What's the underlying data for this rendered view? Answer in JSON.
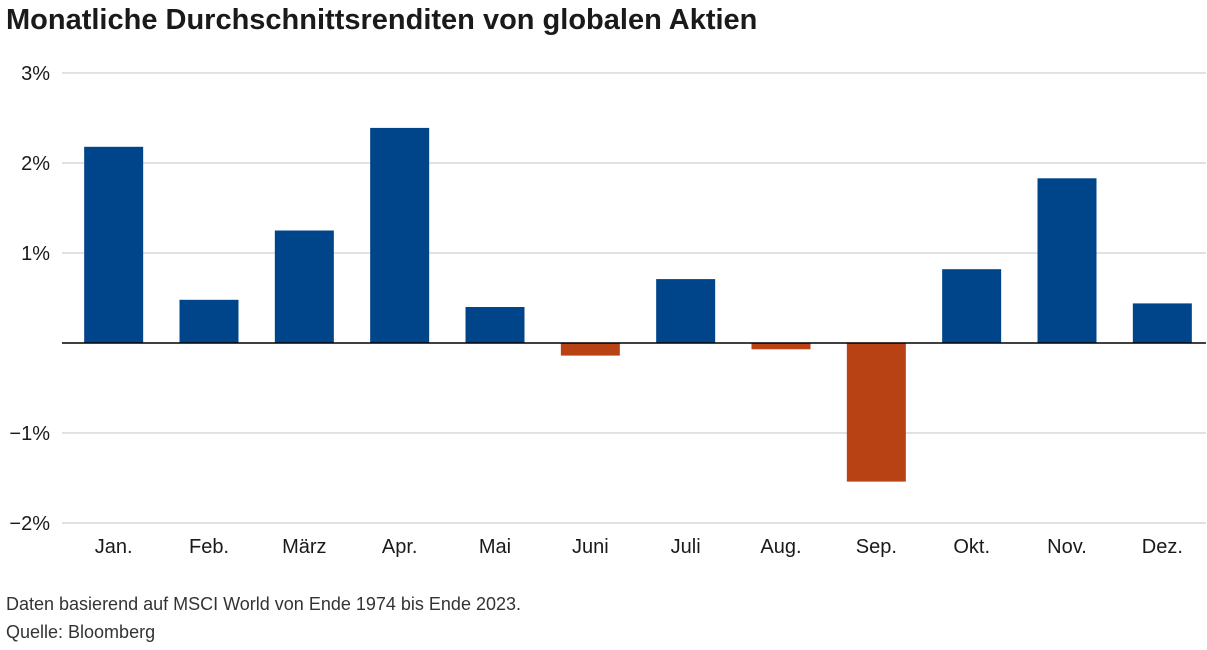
{
  "chart_data": {
    "type": "bar",
    "title": "Monatliche Durchschnittsrenditen von globalen Aktien",
    "categories": [
      "Jan.",
      "Feb.",
      "März",
      "Apr.",
      "Mai",
      "Juni",
      "Juli",
      "Aug.",
      "Sep.",
      "Okt.",
      "Nov.",
      "Dez."
    ],
    "values": [
      2.18,
      0.48,
      1.25,
      2.39,
      0.4,
      -0.14,
      0.71,
      -0.07,
      -1.54,
      0.82,
      1.83,
      0.44
    ],
    "ylim": [
      -2,
      3
    ],
    "yticks": [
      -2,
      -1,
      1,
      2,
      3
    ],
    "ytick_labels": [
      "−2%",
      "−1%",
      "1%",
      "2%",
      "3%"
    ],
    "xlabel": "",
    "ylabel": "",
    "grid": true,
    "colors": {
      "positive": "#00448a",
      "negative": "#b84214",
      "grid": "#d0d0d0",
      "zero_line": "#000000"
    }
  },
  "footnote": "Daten basierend auf MSCI World von Ende 1974 bis Ende 2023.",
  "source": "Quelle: Bloomberg"
}
